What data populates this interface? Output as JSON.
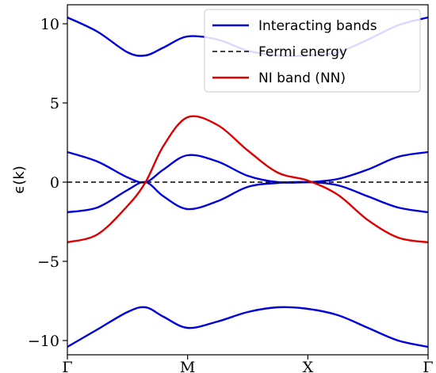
{
  "chart_data": {
    "type": "line",
    "title": "",
    "xlabel": "",
    "ylabel": "ϵ(k)",
    "x_ticks": [
      "Γ",
      "M",
      "X",
      "Γ"
    ],
    "y_ticks": [
      "−10",
      "−5",
      "0",
      "5",
      "10"
    ],
    "y_tick_values": [
      -10,
      -5,
      0,
      5,
      10
    ],
    "xlim": [
      0,
      3
    ],
    "ylim": [
      -10.9,
      11.2
    ],
    "grid": false,
    "legend_position": "top-right",
    "legend": [
      {
        "label": "Interacting bands",
        "color": "#0000dd",
        "style": "solid"
      },
      {
        "label": "Fermi energy",
        "color": "#000000",
        "style": "dashed"
      },
      {
        "label": "NI band (NN)",
        "color": "#dd0000",
        "style": "solid"
      }
    ],
    "x": [
      0,
      0.25,
      0.5,
      0.65,
      0.8,
      1.0,
      1.25,
      1.5,
      1.75,
      2.0,
      2.25,
      2.5,
      2.75,
      3.0
    ],
    "series": [
      {
        "name": "Interacting bands",
        "color": "#0000dd",
        "style": "solid",
        "values": [
          10.4,
          9.5,
          8.2,
          8.0,
          8.5,
          9.2,
          9.0,
          8.3,
          8.0,
          8.0,
          8.2,
          9.0,
          9.9,
          10.4
        ]
      },
      {
        "name": "",
        "color": "#0000dd",
        "style": "solid",
        "values": [
          1.9,
          1.3,
          0.3,
          0.0,
          0.8,
          1.7,
          1.3,
          0.4,
          0.0,
          0.0,
          0.2,
          0.8,
          1.6,
          1.9
        ]
      },
      {
        "name": "",
        "color": "#0000dd",
        "style": "solid",
        "values": [
          -1.9,
          -1.6,
          -0.5,
          0.0,
          -0.9,
          -1.7,
          -1.2,
          -0.3,
          -0.05,
          0.0,
          -0.2,
          -0.9,
          -1.6,
          -1.9
        ]
      },
      {
        "name": "",
        "color": "#0000dd",
        "style": "solid",
        "values": [
          -10.4,
          -9.3,
          -8.2,
          -7.9,
          -8.5,
          -9.2,
          -8.8,
          -8.2,
          -7.9,
          -8.0,
          -8.4,
          -9.2,
          -10.0,
          -10.4
        ]
      },
      {
        "name": "Fermi energy",
        "color": "#000000",
        "style": "dashed",
        "values": [
          0,
          0,
          0,
          0,
          0,
          0,
          0,
          0,
          0,
          0,
          0,
          0,
          0,
          0
        ]
      },
      {
        "name": "NI band (NN)",
        "color": "#dd0000",
        "style": "solid",
        "values": [
          -3.8,
          -3.3,
          -1.5,
          0.0,
          2.3,
          4.1,
          3.6,
          2.0,
          0.6,
          0.1,
          -0.8,
          -2.4,
          -3.5,
          -3.8
        ]
      }
    ]
  }
}
